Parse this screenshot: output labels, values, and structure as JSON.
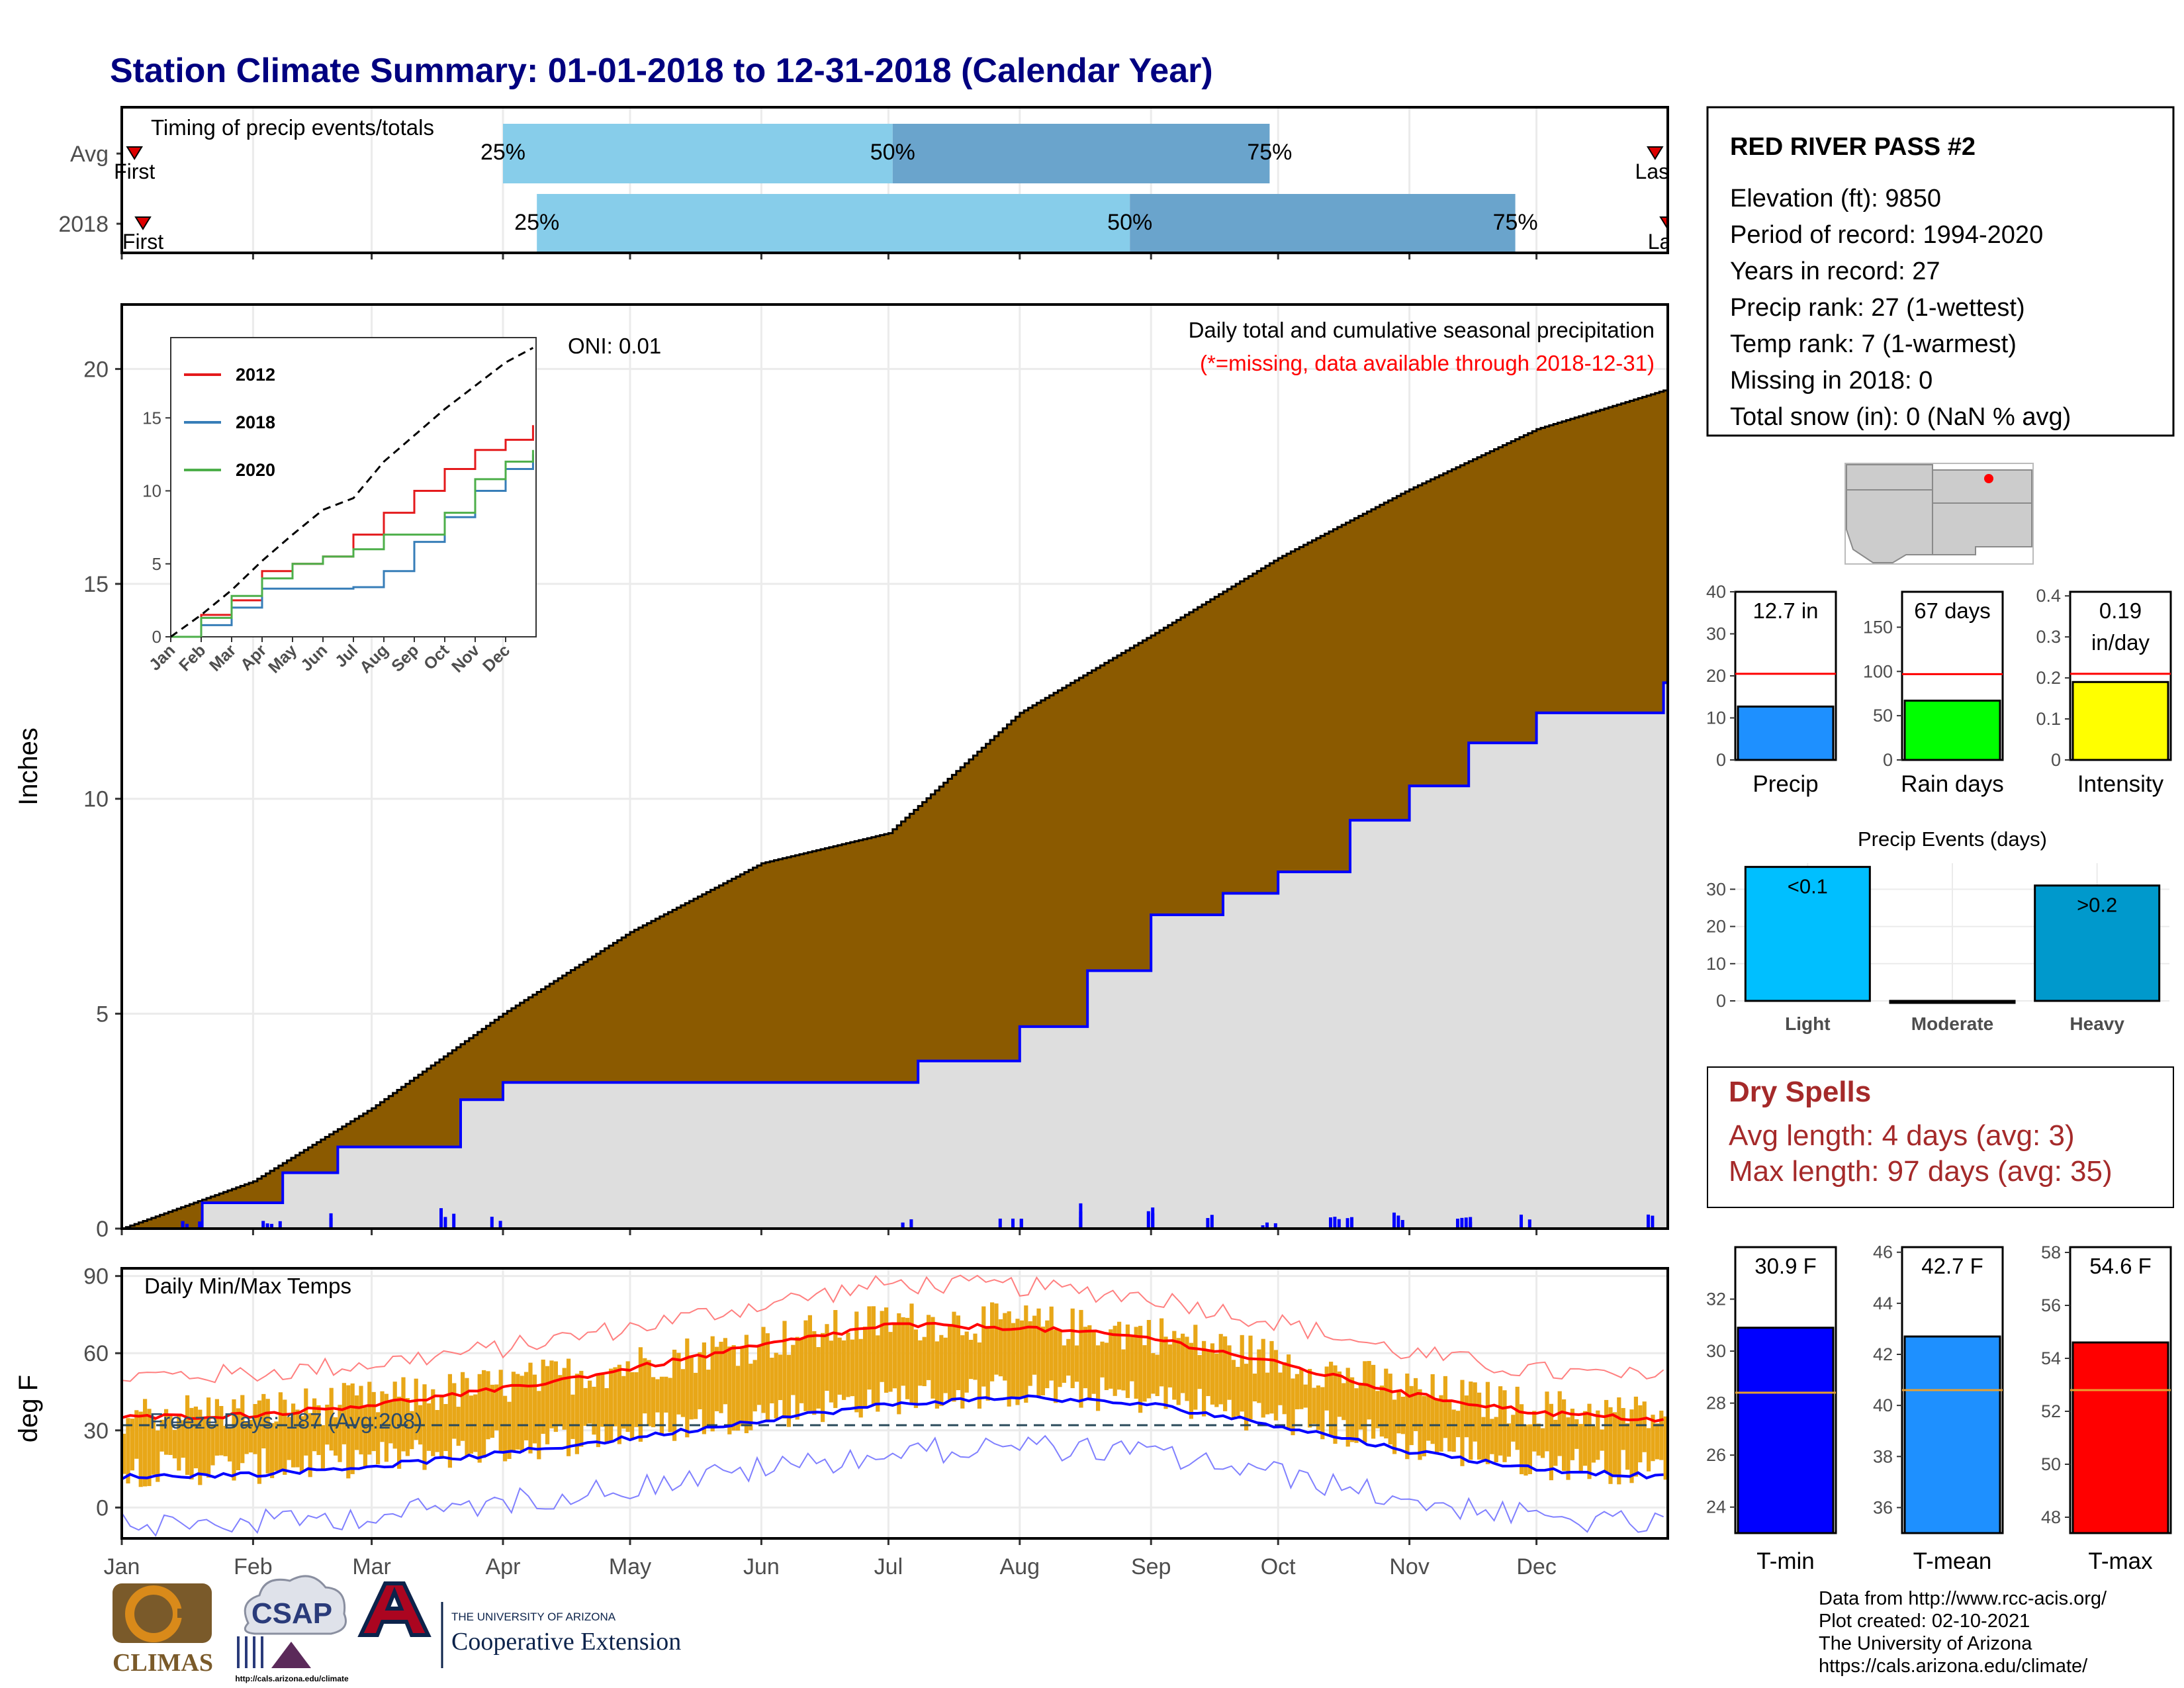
{
  "title": "Station Climate Summary: 01-01-2018 to 12-31-2018 (Calendar Year)",
  "months": [
    "Jan",
    "Feb",
    "Mar",
    "Apr",
    "May",
    "Jun",
    "Jul",
    "Aug",
    "Sep",
    "Oct",
    "Nov",
    "Dec"
  ],
  "colors": {
    "title": "#000080",
    "timing_light": "#87cdea",
    "timing_dark": "#6aa4cc",
    "cum_avg_fill": "#8b5a00",
    "cum_2018_fill": "#dedede",
    "precip_line": "#0000ff",
    "temp_range": "#e8a718",
    "tmax_line": "#ff0000",
    "tmin_line": "#0000ff",
    "dry_spells": "#a52a2a",
    "missing_note": "#ff0000"
  },
  "station": {
    "name": "RED RIVER PASS #2",
    "lines": [
      "Elevation (ft): 9850",
      "Period of record: 1994-2020",
      "Years in record: 27",
      "Precip rank: 27 (1-wettest)",
      "Temp rank: 7 (1-warmest)",
      "Missing in 2018: 0",
      "Total snow (in): 0 (NaN % avg)"
    ]
  },
  "chart_data": [
    {
      "type": "bar",
      "name": "timing",
      "title": "Timing of precip events/totals",
      "rows": [
        {
          "label": "Avg",
          "first": "First",
          "last": "Last",
          "q25": "2018-04-01",
          "q50": "2018-07-02",
          "q75": "2018-09-29",
          "first_date": "2018-01-04",
          "last_date": "2018-12-29"
        },
        {
          "label": "2018",
          "first": "First",
          "last": "Last",
          "q25": "2018-04-09",
          "q50": "2018-08-27",
          "q75": "2018-11-26",
          "first_date": "2018-01-06",
          "last_date": "2019-01-01"
        }
      ],
      "quartile_labels": [
        "25%",
        "50%",
        "75%"
      ]
    },
    {
      "type": "area",
      "name": "cumulative_precip",
      "title": "Daily total and cumulative seasonal precipitation",
      "note": "(*=missing, data available through 2018-12-31)",
      "ylabel": "Inches",
      "ylim": [
        0,
        21.5
      ],
      "yticks": [
        0,
        5,
        10,
        15,
        20
      ],
      "oni": "ONI: 0.01",
      "avg_cumulative": {
        "x": [
          "2018-01-01",
          "2018-02-01",
          "2018-03-01",
          "2018-04-01",
          "2018-05-01",
          "2018-06-01",
          "2018-07-01",
          "2018-08-01",
          "2018-09-01",
          "2018-10-01",
          "2018-11-01",
          "2018-12-01",
          "2018-12-31"
        ],
        "y": [
          0,
          1.1,
          2.8,
          5.0,
          6.9,
          8.5,
          9.2,
          12.0,
          13.8,
          15.6,
          17.2,
          18.6,
          19.5
        ]
      },
      "cumulative_2018": {
        "x": [
          "2018-01-01",
          "2018-01-20",
          "2018-02-08",
          "2018-02-21",
          "2018-03-22",
          "2018-04-01",
          "2018-04-09",
          "2018-07-02",
          "2018-07-08",
          "2018-08-01",
          "2018-08-17",
          "2018-09-01",
          "2018-09-18",
          "2018-10-01",
          "2018-10-18",
          "2018-11-01",
          "2018-11-15",
          "2018-12-01",
          "2018-12-31"
        ],
        "y": [
          0,
          0.6,
          1.3,
          1.9,
          3.0,
          3.4,
          3.4,
          3.4,
          3.9,
          4.7,
          6.0,
          7.3,
          7.8,
          8.3,
          9.5,
          10.3,
          11.3,
          12.0,
          12.7
        ]
      }
    },
    {
      "type": "line",
      "name": "inset_cumulative",
      "yticks": [
        0,
        5,
        10,
        15
      ],
      "ylim": [
        0,
        20.5
      ],
      "series": [
        {
          "name": "2012",
          "color": "#e41a1c",
          "x": [
            1,
            2,
            3,
            4,
            5,
            6,
            7,
            8,
            9,
            10,
            11,
            12,
            12.9
          ],
          "y": [
            0,
            1.5,
            2.5,
            4.5,
            5.0,
            5.5,
            7.0,
            8.5,
            10.0,
            11.5,
            12.8,
            13.5,
            14.5
          ]
        },
        {
          "name": "2018",
          "color": "#377eb8",
          "x": [
            1,
            2,
            3,
            4,
            5,
            6,
            7,
            8,
            9,
            10,
            11,
            12,
            12.9
          ],
          "y": [
            0,
            0.8,
            2.0,
            3.3,
            3.3,
            3.3,
            3.4,
            4.5,
            6.5,
            8.2,
            10.0,
            11.5,
            12.5
          ]
        },
        {
          "name": "2020",
          "color": "#4daf4a",
          "x": [
            1,
            2,
            3,
            4,
            5,
            6,
            7,
            8,
            9,
            10,
            11,
            12,
            12.9
          ],
          "y": [
            0,
            1.3,
            2.8,
            4.0,
            5.0,
            5.5,
            6.0,
            7.0,
            7.0,
            8.5,
            10.8,
            12.0,
            12.8
          ]
        },
        {
          "name": "",
          "color": "#000000",
          "dashed": true,
          "x": [
            1,
            2,
            3,
            4,
            5,
            6,
            7,
            8,
            9,
            10,
            11,
            12,
            12.9
          ],
          "y": [
            0,
            1.5,
            3.2,
            5.2,
            7.0,
            8.7,
            9.5,
            12.0,
            13.8,
            15.6,
            17.2,
            18.8,
            19.8
          ]
        }
      ]
    },
    {
      "type": "line",
      "name": "temps",
      "title": "Daily Min/Max Temps",
      "ylabel": "deg F",
      "ylim": [
        -12,
        93
      ],
      "yticks": [
        0,
        30,
        60,
        90
      ],
      "freeze_line": 32,
      "freeze_text": "Freeze Days: 187 (Avg:208)",
      "normal_tmax": {
        "x": [
          1,
          32,
          60,
          91,
          121,
          152,
          182,
          213,
          244,
          274,
          305,
          335,
          365
        ],
        "y": [
          35,
          36,
          40,
          46,
          54,
          63,
          71,
          70,
          66,
          56,
          44,
          37,
          34
        ]
      },
      "normal_tmin": {
        "x": [
          1,
          32,
          60,
          91,
          121,
          152,
          182,
          213,
          244,
          274,
          305,
          335,
          365
        ],
        "y": [
          12,
          13,
          16,
          21,
          27,
          34,
          40,
          43,
          40,
          32,
          22,
          15,
          12
        ]
      }
    },
    {
      "type": "bar",
      "name": "precip_gauges",
      "panels": [
        {
          "label": "Precip",
          "value": 12.7,
          "value_text": "12.7 in",
          "avg": 20.5,
          "ylim": [
            0,
            40
          ],
          "ticks": [
            0,
            10,
            20,
            30,
            40
          ],
          "color": "#1e90ff"
        },
        {
          "label": "Rain days",
          "value": 67,
          "value_text": "67 days",
          "avg": 97,
          "ylim": [
            0,
            190
          ],
          "ticks": [
            0,
            50,
            100,
            150
          ],
          "color": "#00ff00"
        },
        {
          "label": "Intensity",
          "value": 0.19,
          "value_text": "0.19 in/day",
          "avg": 0.21,
          "ylim": [
            0,
            0.41
          ],
          "ticks": [
            0.0,
            0.1,
            0.2,
            0.3,
            0.4
          ],
          "color": "#ffff00"
        }
      ]
    },
    {
      "type": "bar",
      "name": "precip_events",
      "title": "Precip Events (days)",
      "categories": [
        "Light",
        "Moderate",
        "Heavy"
      ],
      "values": [
        36,
        0,
        31
      ],
      "value_labels": [
        "<0.1",
        "",
        ">0.2"
      ],
      "colors": [
        "#00bfff",
        "#00bfff",
        "#0099cc"
      ],
      "ylim": [
        0,
        37
      ],
      "yticks": [
        0,
        10,
        20,
        30
      ]
    },
    {
      "type": "bar",
      "name": "temp_gauges",
      "panels": [
        {
          "label": "T-min",
          "value": 30.9,
          "value_text": "30.9 F",
          "avg": 28.4,
          "ylim": [
            23,
            34
          ],
          "ticks": [
            24,
            26,
            28,
            30,
            32
          ],
          "color": "#0000ff"
        },
        {
          "label": "T-mean",
          "value": 42.7,
          "value_text": "42.7 F",
          "avg": 40.6,
          "ylim": [
            35,
            46.2
          ],
          "ticks": [
            36,
            38,
            40,
            42,
            44,
            46
          ],
          "color": "#1e90ff"
        },
        {
          "label": "T-max",
          "value": 54.6,
          "value_text": "54.6 F",
          "avg": 52.8,
          "ylim": [
            47.4,
            58.2
          ],
          "ticks": [
            48,
            50,
            52,
            54,
            56,
            58
          ],
          "color": "#ff0000"
        }
      ]
    }
  ],
  "dry_spells": {
    "title": "Dry Spells",
    "avg_length": "Avg length: 4 days (avg: 3)",
    "max_length": "Max length: 97 days (avg: 35)"
  },
  "credits": {
    "lines": [
      "Data from http://www.rcc-acis.org/",
      "Plot created: 02-10-2021",
      "The University of Arizona",
      "https://cals.arizona.edu/climate/"
    ]
  },
  "logos": {
    "climas": "CLIMAS",
    "csap": "CSAP",
    "csap_url": "http://cals.arizona.edu/climate",
    "ua_small": "THE UNIVERSITY OF ARIZONA",
    "ua_big": "Cooperative Extension"
  }
}
